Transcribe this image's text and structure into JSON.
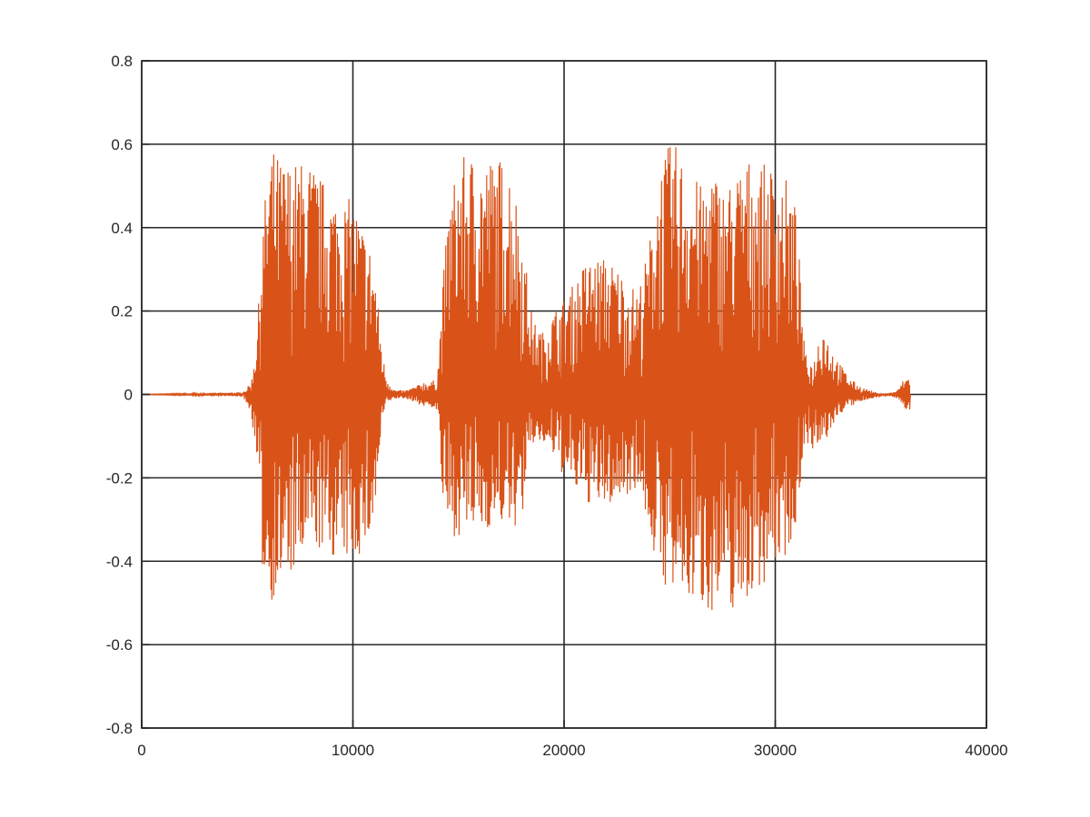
{
  "chart_data": {
    "type": "line",
    "title": "",
    "xlabel": "",
    "ylabel": "",
    "xlim": [
      0,
      40000
    ],
    "ylim": [
      -0.8,
      0.8
    ],
    "xticks": [
      0,
      10000,
      20000,
      30000,
      40000
    ],
    "xtick_labels": [
      "0",
      "10000",
      "20000",
      "30000",
      "40000"
    ],
    "yticks": [
      -0.8,
      -0.6,
      -0.4,
      -0.2,
      0,
      0.2,
      0.4,
      0.6,
      0.8
    ],
    "ytick_labels": [
      "-0.8",
      "-0.6",
      "-0.4",
      "-0.2",
      "0",
      "0.2",
      "0.4",
      "0.6",
      "0.8"
    ],
    "grid": true,
    "series_color": "#d95319",
    "series": [
      {
        "x": [
          0,
          4800,
          5200,
          5500,
          5700,
          6100,
          6500,
          7000,
          7500,
          8000,
          8500,
          9000,
          9500,
          10000,
          10500,
          11000,
          11400,
          11600,
          12000,
          12500,
          13000,
          13300,
          13700,
          14000,
          14300,
          14600,
          15000,
          15500,
          16000,
          16500,
          17000,
          17500,
          18000,
          18500,
          19000,
          19500,
          20000,
          20500,
          21000,
          21500,
          22000,
          22500,
          23000,
          23500,
          24000,
          24500,
          25000,
          25300,
          25500,
          26000,
          26500,
          27000,
          27500,
          28000,
          28500,
          29000,
          29500,
          30000,
          30500,
          31000,
          31400,
          31800,
          32200,
          32600,
          33000,
          33500,
          34000,
          34500,
          35000,
          35500,
          35800,
          36000,
          36200,
          36400
        ],
        "upper": [
          0.0,
          0.005,
          0.03,
          0.18,
          0.4,
          0.6,
          0.57,
          0.56,
          0.56,
          0.56,
          0.52,
          0.49,
          0.47,
          0.47,
          0.4,
          0.33,
          0.1,
          0.04,
          0.01,
          0.01,
          0.02,
          0.03,
          0.03,
          0.04,
          0.3,
          0.48,
          0.56,
          0.58,
          0.57,
          0.57,
          0.57,
          0.55,
          0.4,
          0.18,
          0.15,
          0.2,
          0.23,
          0.27,
          0.32,
          0.33,
          0.33,
          0.31,
          0.27,
          0.25,
          0.35,
          0.55,
          0.6,
          0.6,
          0.58,
          0.54,
          0.5,
          0.55,
          0.5,
          0.52,
          0.56,
          0.57,
          0.55,
          0.55,
          0.52,
          0.45,
          0.1,
          0.07,
          0.18,
          0.12,
          0.08,
          0.04,
          0.02,
          0.01,
          0.0,
          0.005,
          0.01,
          0.03,
          0.04,
          0.045
        ],
        "lower": [
          0.0,
          -0.005,
          -0.05,
          -0.2,
          -0.42,
          -0.5,
          -0.47,
          -0.44,
          -0.42,
          -0.36,
          -0.38,
          -0.39,
          -0.4,
          -0.4,
          -0.38,
          -0.32,
          -0.06,
          -0.02,
          -0.01,
          -0.01,
          -0.02,
          -0.03,
          -0.03,
          -0.04,
          -0.3,
          -0.34,
          -0.34,
          -0.33,
          -0.33,
          -0.32,
          -0.31,
          -0.33,
          -0.3,
          -0.12,
          -0.12,
          -0.15,
          -0.2,
          -0.23,
          -0.26,
          -0.27,
          -0.27,
          -0.26,
          -0.24,
          -0.22,
          -0.32,
          -0.45,
          -0.47,
          -0.5,
          -0.5,
          -0.5,
          -0.51,
          -0.52,
          -0.52,
          -0.52,
          -0.5,
          -0.48,
          -0.45,
          -0.41,
          -0.39,
          -0.32,
          -0.1,
          -0.15,
          -0.13,
          -0.09,
          -0.05,
          -0.03,
          -0.02,
          -0.01,
          -0.005,
          -0.005,
          -0.01,
          -0.02,
          -0.04,
          -0.045
        ]
      }
    ]
  }
}
